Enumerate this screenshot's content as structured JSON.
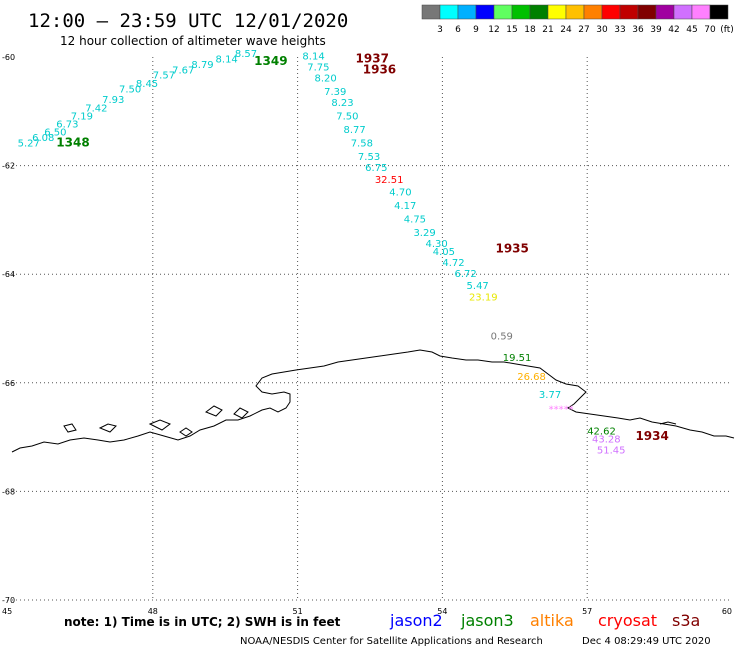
{
  "header": {
    "title": "12:00 – 23:59 UTC 12/01/2020",
    "subtitle": "12 hour collection of altimeter wave heights"
  },
  "colorbar": {
    "colors": [
      "#777777",
      "#00ffff",
      "#00b0ff",
      "#0000ff",
      "#60ff60",
      "#00c000",
      "#008000",
      "#ffff00",
      "#ffc000",
      "#ff8000",
      "#ff0000",
      "#c00000",
      "#800000",
      "#a000a0",
      "#d070ff",
      "#ff80ff",
      "#000000"
    ],
    "labels": [
      "3",
      "6",
      "9",
      "12",
      "15",
      "18",
      "21",
      "24",
      "27",
      "30",
      "33",
      "36",
      "39",
      "42",
      "45",
      "70",
      "(ft)"
    ]
  },
  "chart_data": {
    "type": "scatter",
    "title": "12:00 – 23:59 UTC 12/01/2020",
    "subtitle": "12 hour collection of altimeter wave heights",
    "xlim": [
      45,
      60
    ],
    "ylim": [
      -70,
      -60
    ],
    "x_ticks": [
      "45",
      "48",
      "51",
      "54",
      "57",
      "60"
    ],
    "y_ticks": [
      "-60",
      "-62",
      "-64",
      "-66",
      "-68",
      "-70"
    ],
    "points": [
      {
        "lon": 45.2,
        "lat": -61.65,
        "text": "5.27",
        "color": "#00cccc"
      },
      {
        "lon": 45.5,
        "lat": -61.55,
        "text": "6.08",
        "color": "#00cccc"
      },
      {
        "lon": 45.75,
        "lat": -61.45,
        "text": "6.50",
        "color": "#00cccc"
      },
      {
        "lon": 46.0,
        "lat": -61.3,
        "text": "6.73",
        "color": "#00cccc"
      },
      {
        "lon": 46.3,
        "lat": -61.15,
        "text": "7.19",
        "color": "#00cccc"
      },
      {
        "lon": 46.6,
        "lat": -61.0,
        "text": "7.42",
        "color": "#00cccc"
      },
      {
        "lon": 46.95,
        "lat": -60.85,
        "text": "7.93",
        "color": "#00cccc"
      },
      {
        "lon": 47.3,
        "lat": -60.65,
        "text": "7.50",
        "color": "#00cccc"
      },
      {
        "lon": 47.65,
        "lat": -60.55,
        "text": "8.45",
        "color": "#00cccc"
      },
      {
        "lon": 48.0,
        "lat": -60.4,
        "text": "7.57",
        "color": "#00cccc"
      },
      {
        "lon": 48.4,
        "lat": -60.3,
        "text": "7.67",
        "color": "#00cccc"
      },
      {
        "lon": 48.8,
        "lat": -60.2,
        "text": "8.79",
        "color": "#00cccc"
      },
      {
        "lon": 49.3,
        "lat": -60.1,
        "text": "8.14",
        "color": "#00cccc"
      },
      {
        "lon": 49.7,
        "lat": -60.0,
        "text": "8.57",
        "color": "#00cccc"
      },
      {
        "lon": 51.1,
        "lat": -60.05,
        "text": "8.14",
        "color": "#00cccc"
      },
      {
        "lon": 51.2,
        "lat": -60.25,
        "text": "7.75",
        "color": "#00cccc"
      },
      {
        "lon": 51.35,
        "lat": -60.45,
        "text": "8.20",
        "color": "#00cccc"
      },
      {
        "lon": 51.55,
        "lat": -60.7,
        "text": "7.39",
        "color": "#00cccc"
      },
      {
        "lon": 51.7,
        "lat": -60.9,
        "text": "8.23",
        "color": "#00cccc"
      },
      {
        "lon": 51.8,
        "lat": -61.15,
        "text": "7.50",
        "color": "#00cccc"
      },
      {
        "lon": 51.95,
        "lat": -61.4,
        "text": "8.77",
        "color": "#00cccc"
      },
      {
        "lon": 52.1,
        "lat": -61.65,
        "text": "7.58",
        "color": "#00cccc"
      },
      {
        "lon": 52.25,
        "lat": -61.9,
        "text": "7.53",
        "color": "#00cccc"
      },
      {
        "lon": 52.4,
        "lat": -62.1,
        "text": "6.75",
        "color": "#00cccc"
      },
      {
        "lon": 52.6,
        "lat": -62.32,
        "text": "32.51",
        "color": "#ff0000"
      },
      {
        "lon": 52.9,
        "lat": -62.55,
        "text": "4.70",
        "color": "#00cccc"
      },
      {
        "lon": 53.0,
        "lat": -62.8,
        "text": "4.17",
        "color": "#00cccc"
      },
      {
        "lon": 53.2,
        "lat": -63.05,
        "text": "4.75",
        "color": "#00cccc"
      },
      {
        "lon": 53.4,
        "lat": -63.3,
        "text": "3.29",
        "color": "#00cccc"
      },
      {
        "lon": 53.65,
        "lat": -63.5,
        "text": "4.30",
        "color": "#00cccc"
      },
      {
        "lon": 53.8,
        "lat": -63.65,
        "text": "4.05",
        "color": "#00cccc"
      },
      {
        "lon": 54.0,
        "lat": -63.85,
        "text": "4.72",
        "color": "#00cccc"
      },
      {
        "lon": 54.25,
        "lat": -64.05,
        "text": "6.72",
        "color": "#00cccc"
      },
      {
        "lon": 54.5,
        "lat": -64.27,
        "text": "5.47",
        "color": "#00cccc"
      },
      {
        "lon": 54.55,
        "lat": -64.48,
        "text": "23.19",
        "color": "#e8e800"
      },
      {
        "lon": 55.0,
        "lat": -65.2,
        "text": "0.59",
        "color": "#777777"
      },
      {
        "lon": 55.25,
        "lat": -65.6,
        "text": "19.51",
        "color": "#008000"
      },
      {
        "lon": 55.55,
        "lat": -65.95,
        "text": "26.68",
        "color": "#ffb000"
      },
      {
        "lon": 56.0,
        "lat": -66.28,
        "text": "3.77",
        "color": "#00cccc"
      },
      {
        "lon": 57.0,
        "lat": -66.95,
        "text": "42.62",
        "color": "#008000"
      },
      {
        "lon": 57.1,
        "lat": -67.1,
        "text": "43.28",
        "color": "#d070ff"
      },
      {
        "lon": 57.2,
        "lat": -67.3,
        "text": "51.45",
        "color": "#d070ff"
      }
    ],
    "time_labels": [
      {
        "lon": 46.0,
        "lat": -61.65,
        "text": "1348",
        "color": "#008000"
      },
      {
        "lon": 50.1,
        "lat": -60.15,
        "text": "1349",
        "color": "#008000"
      },
      {
        "lon": 52.2,
        "lat": -60.1,
        "text": "1937",
        "color": "#800000"
      },
      {
        "lon": 52.35,
        "lat": -60.3,
        "text": "1936",
        "color": "#800000"
      },
      {
        "lon": 55.1,
        "lat": -63.6,
        "text": "1935",
        "color": "#800000"
      },
      {
        "lon": 58.0,
        "lat": -67.05,
        "text": "1934",
        "color": "#800000"
      }
    ]
  },
  "footer": {
    "note": "note: 1) Time is in UTC; 2) SWH is in feet",
    "satellites": [
      {
        "name": "jason2",
        "color": "#0000ff"
      },
      {
        "name": "jason3",
        "color": "#008000"
      },
      {
        "name": "altika",
        "color": "#ff8000"
      },
      {
        "name": "cryosat",
        "color": "#ff0000"
      },
      {
        "name": "s3a",
        "color": "#800000"
      }
    ],
    "credit": "NOAA/NESDIS Center for Satellite Applications and Research",
    "timestamp": "Dec  4 08:29:49 UTC 2020"
  }
}
